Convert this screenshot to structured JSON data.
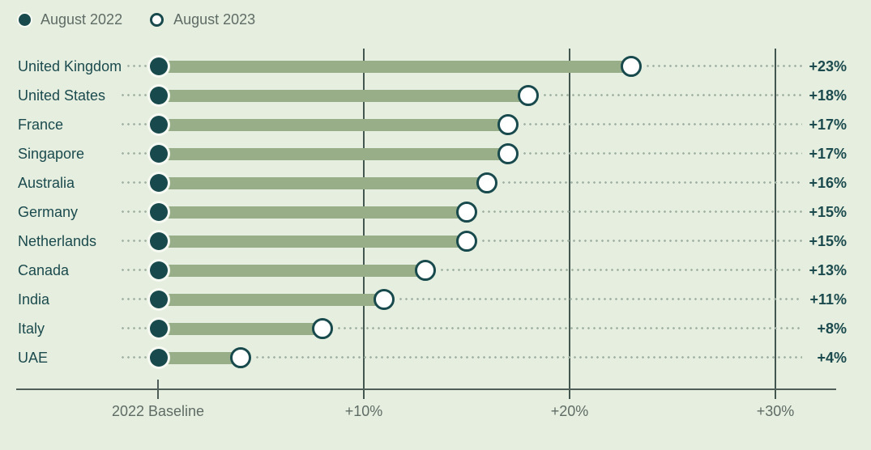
{
  "legend": {
    "items": [
      {
        "label": "August 2022",
        "marker": "filled-dot"
      },
      {
        "label": "August 2023",
        "marker": "open-dot"
      }
    ]
  },
  "chart_data": {
    "type": "dumbbell",
    "title": "",
    "categories": [
      "United Kingdom",
      "United States",
      "France",
      "Singapore",
      "Australia",
      "Germany",
      "Netherlands",
      "Canada",
      "India",
      "Italy",
      "UAE"
    ],
    "series": [
      {
        "name": "August 2022",
        "values": [
          0,
          0,
          0,
          0,
          0,
          0,
          0,
          0,
          0,
          0,
          0
        ]
      },
      {
        "name": "August 2023",
        "values": [
          23,
          18,
          17,
          17,
          16,
          15,
          15,
          13,
          11,
          8,
          4
        ]
      }
    ],
    "value_labels": [
      "+23%",
      "+18%",
      "+17%",
      "+17%",
      "+16%",
      "+15%",
      "+15%",
      "+13%",
      "+11%",
      "+8%",
      "+4%"
    ],
    "x_axis": {
      "ticks": [
        {
          "pct": 0,
          "label": "2022 Baseline"
        },
        {
          "pct": 10,
          "label": "+10%"
        },
        {
          "pct": 20,
          "label": "+20%"
        },
        {
          "pct": 30,
          "label": "+30%"
        }
      ],
      "range_pct": [
        0,
        33
      ],
      "grid": true
    },
    "legend_position": "top-left",
    "colors": {
      "background": "#e6efdf",
      "bar": "#98ae88",
      "marker_filled": "#17494d",
      "marker_open_fill": "#ffffff",
      "marker_ring": "#f7faf3",
      "accent_text": "#1b4a4e",
      "muted_text": "#5f6b65",
      "leader_dots": "#a4b5a7",
      "gridline": "#435750",
      "axis": "#4f5e58"
    }
  }
}
